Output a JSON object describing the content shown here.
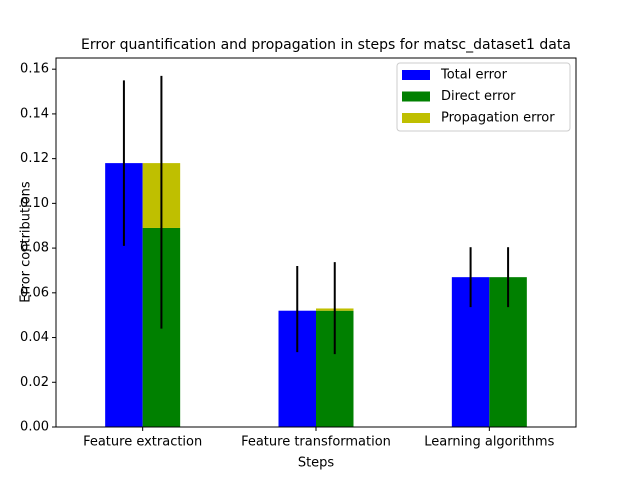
{
  "chart_data": {
    "type": "bar",
    "title": "Error quantification and propagation in steps for matsc_dataset1 data",
    "x_label": "Steps",
    "y_label": "Error contributions",
    "categories": [
      "Feature extraction",
      "Feature transformation",
      "Learning algorithms"
    ],
    "series": [
      {
        "name": "Total error",
        "color": "#0000ff",
        "values": [
          0.118,
          0.052,
          0.067
        ],
        "err_low": [
          0.081,
          0.0335,
          0.0536
        ],
        "err_high": [
          0.155,
          0.072,
          0.0804
        ]
      },
      {
        "name": "Direct error",
        "color": "#008000",
        "values": [
          0.089,
          0.052,
          0.067
        ]
      },
      {
        "name": "Propagation error",
        "color": "#bfbf00",
        "values": [
          0.029,
          0.001,
          0.0
        ],
        "err_low": [
          0.044,
          0.0326,
          0.0536
        ],
        "err_high": [
          0.157,
          0.0737,
          0.0804
        ]
      }
    ],
    "ylim": [
      0,
      0.165
    ],
    "yticks": [
      {
        "value": 0,
        "label": "0.00"
      },
      {
        "value": 0.02,
        "label": "0.02"
      },
      {
        "value": 0.04,
        "label": "0.04"
      },
      {
        "value": 0.06,
        "label": "0.06"
      },
      {
        "value": 0.08,
        "label": "0.08"
      },
      {
        "value": 0.1,
        "label": "0.10"
      },
      {
        "value": 0.12,
        "label": "0.12"
      },
      {
        "value": 0.14,
        "label": "0.14"
      },
      {
        "value": 0.16,
        "label": "0.16"
      }
    ],
    "legend": "upper right"
  }
}
